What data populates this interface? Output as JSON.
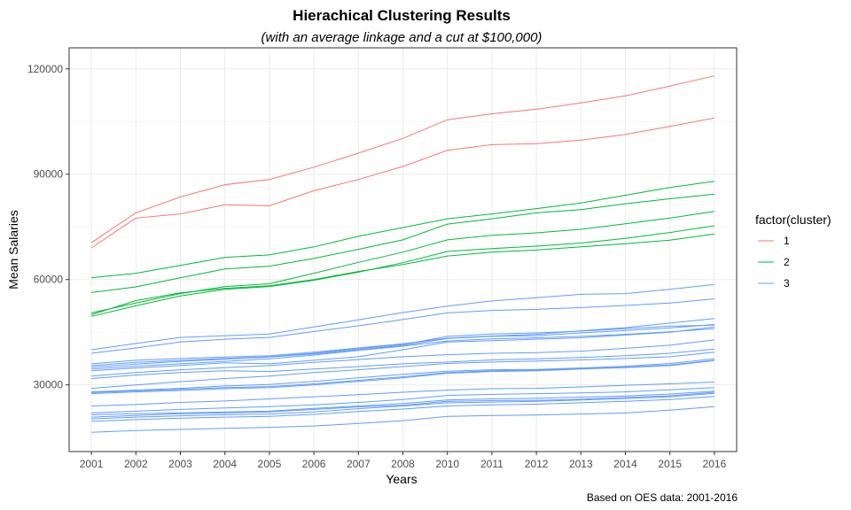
{
  "chart_data": {
    "type": "line",
    "title": "Hierachical Clustering Results",
    "subtitle": "(with an average linkage and a cut at $100,000)",
    "xlabel": "Years",
    "ylabel": "Mean Salaries",
    "caption": "Based on OES data: 2001-2016",
    "categories": [
      "2001",
      "2002",
      "2003",
      "2004",
      "2005",
      "2006",
      "2007",
      "2008",
      "2010",
      "2011",
      "2012",
      "2013",
      "2014",
      "2015",
      "2016"
    ],
    "y_ticks": [
      30000,
      60000,
      90000,
      120000
    ],
    "y_tick_labels": [
      "30000",
      "60000",
      "90000",
      "120000"
    ],
    "ylim": [
      11000,
      126000
    ],
    "grid": true,
    "legend": {
      "title": "factor(cluster)",
      "position": "right",
      "entries": [
        {
          "label": "1",
          "color": "#F8766D"
        },
        {
          "label": "2",
          "color": "#00BA38"
        },
        {
          "label": "3",
          "color": "#619CFF"
        }
      ]
    },
    "series": [
      {
        "cluster": "1",
        "values": [
          70500,
          79000,
          83500,
          87000,
          88500,
          92000,
          96000,
          100200,
          105500,
          107200,
          108500,
          110300,
          112300,
          115100,
          118000
        ]
      },
      {
        "cluster": "1",
        "values": [
          69000,
          77500,
          78700,
          81300,
          81000,
          85300,
          88500,
          92200,
          96800,
          98400,
          98700,
          99700,
          101300,
          103600,
          106000
        ]
      },
      {
        "cluster": "2",
        "values": [
          60500,
          61800,
          64000,
          66300,
          67000,
          69300,
          72300,
          74800,
          77300,
          78700,
          80200,
          81800,
          84000,
          86200,
          88000
        ]
      },
      {
        "cluster": "2",
        "values": [
          56300,
          57900,
          60500,
          63000,
          63800,
          66000,
          68600,
          71300,
          75800,
          77300,
          79000,
          79900,
          81600,
          83000,
          84300
        ]
      },
      {
        "cluster": "2",
        "values": [
          50500,
          53300,
          56000,
          58000,
          58800,
          61800,
          64900,
          67800,
          71300,
          72600,
          73300,
          74300,
          75900,
          77500,
          79400
        ]
      },
      {
        "cluster": "2",
        "values": [
          49500,
          52500,
          55300,
          57200,
          58000,
          59800,
          62100,
          64800,
          68000,
          68800,
          69500,
          70400,
          71700,
          73400,
          75300
        ]
      },
      {
        "cluster": "2",
        "values": [
          50000,
          54000,
          56200,
          57500,
          58200,
          60000,
          62300,
          64300,
          66700,
          67800,
          68400,
          69300,
          70200,
          71200,
          73000
        ]
      },
      {
        "cluster": "3",
        "values": [
          40000,
          41800,
          43500,
          44000,
          44500,
          46500,
          48500,
          50600,
          52400,
          53900,
          54800,
          55800,
          56000,
          57200,
          58600
        ]
      },
      {
        "cluster": "3",
        "values": [
          39000,
          40500,
          42200,
          43000,
          43500,
          45200,
          46800,
          48600,
          50500,
          51200,
          51500,
          52000,
          52600,
          53300,
          54500
        ]
      },
      {
        "cluster": "3",
        "values": [
          36000,
          37000,
          37500,
          37900,
          38300,
          39300,
          40500,
          41700,
          43300,
          43900,
          44400,
          45400,
          46300,
          47600,
          48900
        ]
      },
      {
        "cluster": "3",
        "values": [
          35500,
          36400,
          37000,
          37500,
          38000,
          39000,
          40300,
          41500,
          43800,
          44500,
          44800,
          45300,
          46000,
          46700,
          47000
        ]
      },
      {
        "cluster": "3",
        "values": [
          35000,
          35900,
          36700,
          37300,
          37900,
          38800,
          40000,
          41200,
          43200,
          43800,
          44000,
          44800,
          45500,
          46200,
          47200
        ]
      },
      {
        "cluster": "3",
        "values": [
          34500,
          35300,
          36000,
          36700,
          37400,
          38500,
          39800,
          41000,
          42500,
          43100,
          43400,
          43800,
          44400,
          45100,
          46000
        ]
      },
      {
        "cluster": "3",
        "values": [
          34000,
          34800,
          35500,
          36300,
          36000,
          37000,
          38000,
          40000,
          42200,
          42600,
          43000,
          43400,
          44200,
          45000,
          46500
        ]
      },
      {
        "cluster": "3",
        "values": [
          32500,
          33500,
          34300,
          34900,
          35500,
          36400,
          37200,
          38000,
          38600,
          39000,
          39200,
          39600,
          40400,
          41300,
          42800
        ]
      },
      {
        "cluster": "3",
        "values": [
          31800,
          32800,
          33500,
          34000,
          33800,
          34500,
          35200,
          36000,
          36500,
          37100,
          37400,
          37800,
          38300,
          39000,
          40200
        ]
      },
      {
        "cluster": "3",
        "values": [
          29000,
          30000,
          30900,
          31800,
          32500,
          33500,
          34300,
          35200,
          36100,
          36500,
          36800,
          37100,
          37500,
          38000,
          39300
        ]
      },
      {
        "cluster": "3",
        "values": [
          28000,
          28500,
          29000,
          29700,
          30100,
          31000,
          32000,
          33000,
          33900,
          34300,
          34400,
          34800,
          35300,
          36100,
          37400
        ]
      },
      {
        "cluster": "3",
        "values": [
          27800,
          28300,
          28700,
          29200,
          29500,
          30300,
          31300,
          32300,
          33500,
          34000,
          34200,
          34600,
          35000,
          35700,
          37000
        ]
      },
      {
        "cluster": "3",
        "values": [
          27500,
          28000,
          28400,
          28900,
          29200,
          30000,
          31000,
          32000,
          33300,
          33800,
          34000,
          34500,
          34900,
          35500,
          36900
        ]
      },
      {
        "cluster": "3",
        "values": [
          24000,
          24400,
          25000,
          25400,
          26000,
          26600,
          27200,
          27900,
          28500,
          28900,
          29000,
          29400,
          29900,
          30300,
          30800
        ]
      },
      {
        "cluster": "3",
        "values": [
          22000,
          22500,
          23000,
          23400,
          23800,
          24300,
          25000,
          25800,
          27000,
          27300,
          27500,
          27700,
          28000,
          28600,
          29200
        ]
      },
      {
        "cluster": "3",
        "values": [
          21500,
          21800,
          22000,
          22300,
          22500,
          23300,
          24000,
          24700,
          25700,
          26000,
          26200,
          26500,
          26800,
          27400,
          28200
        ]
      },
      {
        "cluster": "3",
        "values": [
          20800,
          21300,
          21800,
          22000,
          22300,
          23000,
          23700,
          24200,
          25300,
          25500,
          25600,
          25900,
          26400,
          26900,
          27900
        ]
      },
      {
        "cluster": "3",
        "values": [
          20300,
          20800,
          21200,
          21500,
          21700,
          22300,
          23200,
          24000,
          24900,
          25100,
          25300,
          25700,
          26100,
          26600,
          27600
        ]
      },
      {
        "cluster": "3",
        "values": [
          19600,
          20100,
          20500,
          20800,
          21000,
          21600,
          22400,
          23100,
          24000,
          24300,
          24500,
          24900,
          25300,
          25800,
          26700
        ]
      },
      {
        "cluster": "3",
        "values": [
          16500,
          17000,
          17300,
          17600,
          17900,
          18300,
          19000,
          19800,
          21000,
          21300,
          21400,
          21700,
          22000,
          22800,
          23800
        ]
      }
    ]
  }
}
